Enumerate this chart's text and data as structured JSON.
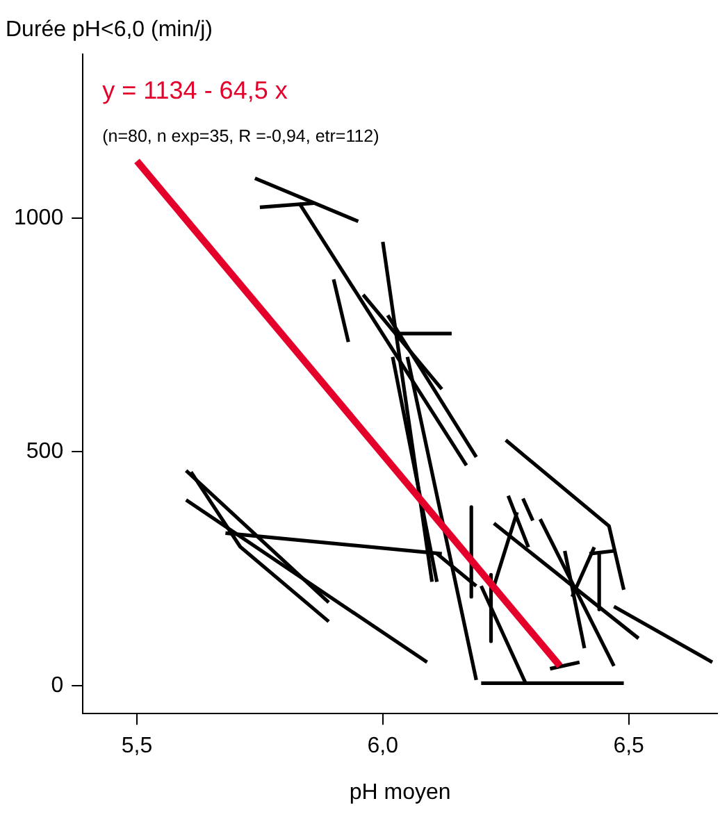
{
  "chart_data": {
    "type": "line",
    "title": "Durée pH<6,0 (min/j)",
    "xlabel": "pH moyen",
    "annotations": [
      "y = 1134 - 64,5 x",
      "(n=80, n exp=35, R =-0,94, etr=112)"
    ],
    "xlim": [
      5.39,
      6.68
    ],
    "ylim": [
      -60,
      1350
    ],
    "xticks": [
      {
        "value": 5.5,
        "label": "5,5"
      },
      {
        "value": 6.0,
        "label": "6,0"
      },
      {
        "value": 6.5,
        "label": "6,5"
      }
    ],
    "yticks": [
      0,
      500,
      1000
    ],
    "grid": false,
    "legend": false,
    "marker": "none",
    "line_style": "solid",
    "series": [
      {
        "color": "#e4002b",
        "x": [
          5.5,
          6.36
        ],
        "values": [
          1122,
          42
        ]
      },
      {
        "color": "#000000",
        "x": [
          5.74,
          5.95
        ],
        "values": [
          1085,
          993
        ]
      },
      {
        "color": "#000000",
        "x": [
          5.75,
          5.86
        ],
        "values": [
          1023,
          1032
        ]
      },
      {
        "color": "#000000",
        "x": [
          5.83,
          6.17
        ],
        "values": [
          1032,
          471
        ]
      },
      {
        "color": "#000000",
        "x": [
          5.9,
          5.93
        ],
        "values": [
          869,
          735
        ]
      },
      {
        "color": "#000000",
        "x": [
          6.0,
          6.1
        ],
        "values": [
          949,
          222
        ]
      },
      {
        "color": "#000000",
        "x": [
          6.03,
          6.14
        ],
        "values": [
          753,
          753
        ]
      },
      {
        "color": "#000000",
        "x": [
          5.96,
          6.12
        ],
        "values": [
          836,
          634
        ]
      },
      {
        "color": "#000000",
        "x": [
          6.01,
          6.19
        ],
        "values": [
          792,
          489
        ]
      },
      {
        "color": "#000000",
        "x": [
          6.02,
          6.11
        ],
        "values": [
          703,
          222
        ]
      },
      {
        "color": "#000000",
        "x": [
          6.05,
          6.19
        ],
        "values": [
          703,
          12
        ]
      },
      {
        "color": "#000000",
        "x": [
          5.6,
          5.89
        ],
        "values": [
          460,
          178
        ]
      },
      {
        "color": "#000000",
        "x": [
          5.61,
          5.71,
          5.89
        ],
        "values": [
          457,
          297,
          137
        ]
      },
      {
        "color": "#000000",
        "x": [
          5.6,
          6.09
        ],
        "values": [
          397,
          50
        ]
      },
      {
        "color": "#000000",
        "x": [
          5.68,
          6.12
        ],
        "values": [
          326,
          282
        ]
      },
      {
        "color": "#000000",
        "x": [
          6.11,
          6.19
        ],
        "values": [
          282,
          213
        ]
      },
      {
        "color": "#000000",
        "x": [
          6.18,
          6.18
        ],
        "values": [
          382,
          190
        ]
      },
      {
        "color": "#000000",
        "x": [
          6.25,
          6.46,
          6.49
        ],
        "values": [
          525,
          341,
          205
        ]
      },
      {
        "color": "#000000",
        "x": [
          6.22,
          6.22
        ],
        "values": [
          237,
          95
        ]
      },
      {
        "color": "#000000",
        "x": [
          6.226,
          6.273
        ],
        "values": [
          213,
          371
        ]
      },
      {
        "color": "#000000",
        "x": [
          6.255,
          6.296
        ],
        "values": [
          406,
          296
        ]
      },
      {
        "color": "#000000",
        "x": [
          6.285,
          6.305
        ],
        "values": [
          400,
          353
        ]
      },
      {
        "color": "#000000",
        "x": [
          6.226,
          6.52
        ],
        "values": [
          347,
          101
        ]
      },
      {
        "color": "#000000",
        "x": [
          6.32,
          6.47
        ],
        "values": [
          356,
          42
        ]
      },
      {
        "color": "#000000",
        "x": [
          6.37,
          6.41
        ],
        "values": [
          288,
          80
        ]
      },
      {
        "color": "#000000",
        "x": [
          6.385,
          6.43
        ],
        "values": [
          190,
          296
        ]
      },
      {
        "color": "#000000",
        "x": [
          6.42,
          6.47
        ],
        "values": [
          282,
          288
        ]
      },
      {
        "color": "#000000",
        "x": [
          6.44,
          6.44
        ],
        "values": [
          282,
          163
        ]
      },
      {
        "color": "#000000",
        "x": [
          6.47,
          6.67
        ],
        "values": [
          169,
          50
        ]
      },
      {
        "color": "#000000",
        "x": [
          6.2,
          6.49
        ],
        "values": [
          5,
          5
        ]
      },
      {
        "color": "#000000",
        "x": [
          6.2,
          6.29
        ],
        "values": [
          213,
          6
        ]
      },
      {
        "color": "#000000",
        "x": [
          6.34,
          6.4
        ],
        "values": [
          36,
          50
        ]
      }
    ]
  }
}
